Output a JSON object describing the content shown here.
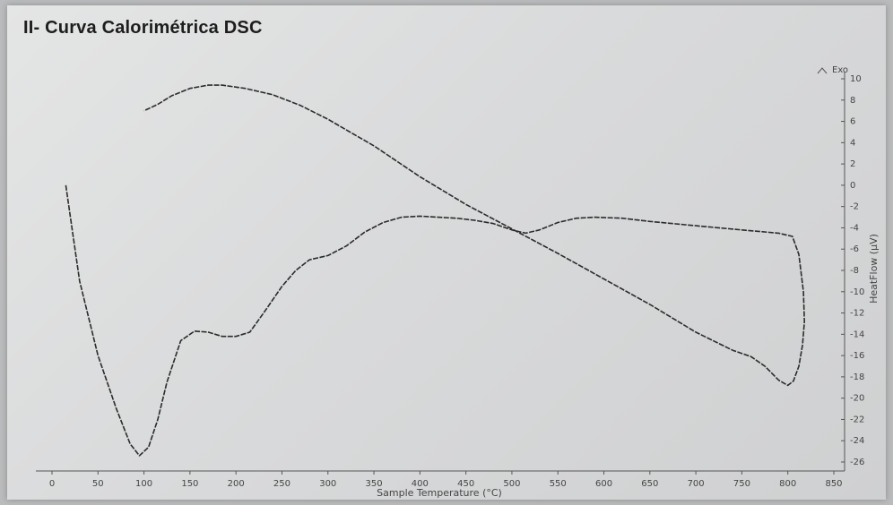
{
  "title": "II- Curva Calorimétrica DSC",
  "chart_data": {
    "type": "line",
    "xlabel": "Sample Temperature (°C)",
    "ylabel": "HeatFlow (µV)",
    "exo_label": "Exo",
    "xlim": [
      0,
      850
    ],
    "ylim": [
      -26,
      10
    ],
    "xticks": [
      0,
      50,
      100,
      150,
      200,
      250,
      300,
      350,
      400,
      450,
      500,
      550,
      600,
      650,
      700,
      750,
      800,
      850
    ],
    "yticks": [
      10,
      8,
      6,
      4,
      2,
      0,
      -2,
      -4,
      -6,
      -8,
      -10,
      -12,
      -14,
      -16,
      -18,
      -20,
      -22,
      -24,
      -26
    ],
    "ytick_labels": [
      "10",
      "8",
      "6",
      "4",
      "2",
      "0",
      "-2",
      "-4",
      "-6",
      "-8",
      "-10",
      "-12",
      "-14",
      "-16",
      "-18",
      "-20",
      "-22",
      "-24",
      "-26"
    ],
    "grid": false,
    "series": [
      {
        "values": [
          [
            15,
            0
          ],
          [
            30,
            -9
          ],
          [
            50,
            -16
          ],
          [
            70,
            -21
          ],
          [
            85,
            -24.3
          ],
          [
            95,
            -25.4
          ],
          [
            105,
            -24.6
          ],
          [
            115,
            -22
          ],
          [
            125,
            -18.5
          ],
          [
            140,
            -14.6
          ],
          [
            155,
            -13.7
          ],
          [
            170,
            -13.8
          ],
          [
            185,
            -14.2
          ],
          [
            200,
            -14.2
          ],
          [
            215,
            -13.8
          ],
          [
            230,
            -12
          ],
          [
            250,
            -9.5
          ],
          [
            265,
            -8
          ],
          [
            280,
            -7
          ],
          [
            300,
            -6.6
          ],
          [
            320,
            -5.7
          ],
          [
            340,
            -4.4
          ],
          [
            360,
            -3.5
          ],
          [
            380,
            -3
          ],
          [
            400,
            -2.9
          ],
          [
            420,
            -3
          ],
          [
            440,
            -3.1
          ],
          [
            460,
            -3.3
          ],
          [
            480,
            -3.6
          ],
          [
            500,
            -4.2
          ],
          [
            515,
            -4.5
          ],
          [
            530,
            -4.2
          ],
          [
            550,
            -3.5
          ],
          [
            570,
            -3.1
          ],
          [
            590,
            -3
          ],
          [
            620,
            -3.1
          ],
          [
            650,
            -3.4
          ],
          [
            700,
            -3.8
          ],
          [
            750,
            -4.2
          ],
          [
            790,
            -4.5
          ],
          [
            805,
            -4.8
          ],
          [
            812,
            -6.5
          ],
          [
            817,
            -10
          ],
          [
            818,
            -12.8
          ],
          [
            816,
            -15
          ],
          [
            812,
            -17
          ],
          [
            806,
            -18.4
          ],
          [
            800,
            -18.8
          ],
          [
            790,
            -18.3
          ],
          [
            775,
            -17
          ],
          [
            760,
            -16.1
          ],
          [
            740,
            -15.5
          ],
          [
            700,
            -13.8
          ],
          [
            650,
            -11.2
          ],
          [
            600,
            -8.8
          ],
          [
            550,
            -6.4
          ],
          [
            500,
            -4.1
          ],
          [
            450,
            -1.8
          ],
          [
            400,
            0.8
          ],
          [
            350,
            3.7
          ],
          [
            300,
            6.2
          ],
          [
            270,
            7.5
          ],
          [
            240,
            8.5
          ],
          [
            210,
            9.1
          ],
          [
            185,
            9.4
          ],
          [
            170,
            9.4
          ],
          [
            150,
            9.1
          ],
          [
            130,
            8.4
          ],
          [
            115,
            7.6
          ],
          [
            100,
            7
          ]
        ]
      }
    ]
  }
}
